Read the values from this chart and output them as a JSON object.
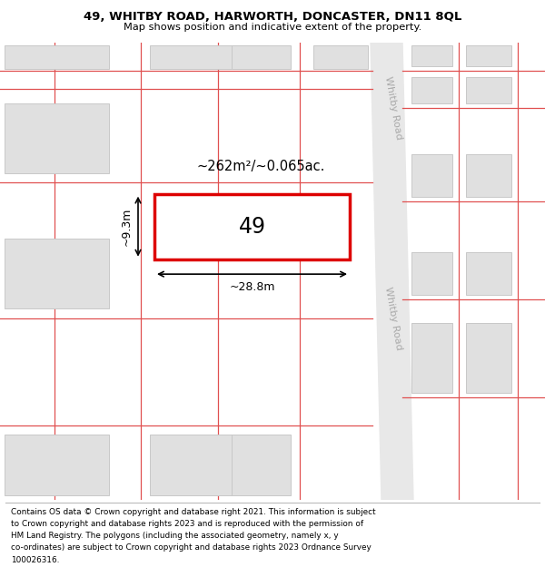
{
  "title_line1": "49, WHITBY ROAD, HARWORTH, DONCASTER, DN11 8QL",
  "title_line2": "Map shows position and indicative extent of the property.",
  "footer_lines": [
    "Contains OS data © Crown copyright and database right 2021. This information is subject",
    "to Crown copyright and database rights 2023 and is reproduced with the permission of",
    "HM Land Registry. The polygons (including the associated geometry, namely x, y",
    "co-ordinates) are subject to Crown copyright and database rights 2023 Ordnance Survey",
    "100026316."
  ],
  "map_bg": "#f7f7f7",
  "road_fill": "#e8e8e8",
  "plot_outline_color": "#dd0000",
  "plot_fill_color": "#ffffff",
  "building_fill": "#e0e0e0",
  "building_outline": "#c8c8c8",
  "red_line_color": "#e05050",
  "road_label": "Whitby Road",
  "property_number": "49",
  "area_label": "~262m²/~0.065ac.",
  "width_label": "~28.8m",
  "height_label": "~9.3m"
}
